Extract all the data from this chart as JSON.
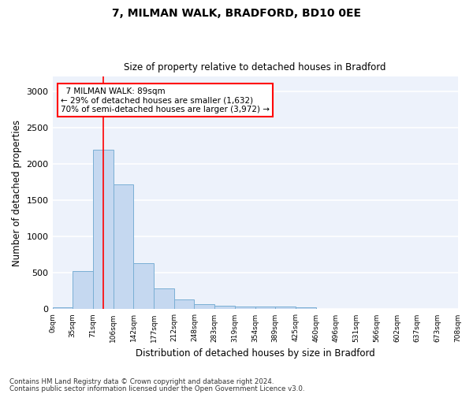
{
  "title1": "7, MILMAN WALK, BRADFORD, BD10 0EE",
  "title2": "Size of property relative to detached houses in Bradford",
  "xlabel": "Distribution of detached houses by size in Bradford",
  "ylabel": "Number of detached properties",
  "bar_values": [
    30,
    520,
    2190,
    1720,
    630,
    290,
    130,
    75,
    50,
    40,
    40,
    35,
    30,
    0,
    0,
    0,
    0,
    0,
    0,
    0
  ],
  "bar_labels": [
    "0sqm",
    "35sqm",
    "71sqm",
    "106sqm",
    "142sqm",
    "177sqm",
    "212sqm",
    "248sqm",
    "283sqm",
    "319sqm",
    "354sqm",
    "389sqm",
    "425sqm",
    "460sqm",
    "496sqm",
    "531sqm",
    "566sqm",
    "602sqm",
    "637sqm",
    "673sqm",
    "708sqm"
  ],
  "bar_color": "#c5d8f0",
  "bar_edge_color": "#7aafd4",
  "ylim": [
    0,
    3200
  ],
  "yticks": [
    0,
    500,
    1000,
    1500,
    2000,
    2500,
    3000
  ],
  "red_line_x": 2.5,
  "annotation_text": "  7 MILMAN WALK: 89sqm\n← 29% of detached houses are smaller (1,632)\n70% of semi-detached houses are larger (3,972) →",
  "footnote1": "Contains HM Land Registry data © Crown copyright and database right 2024.",
  "footnote2": "Contains public sector information licensed under the Open Government Licence v3.0.",
  "background_color": "#edf2fb"
}
